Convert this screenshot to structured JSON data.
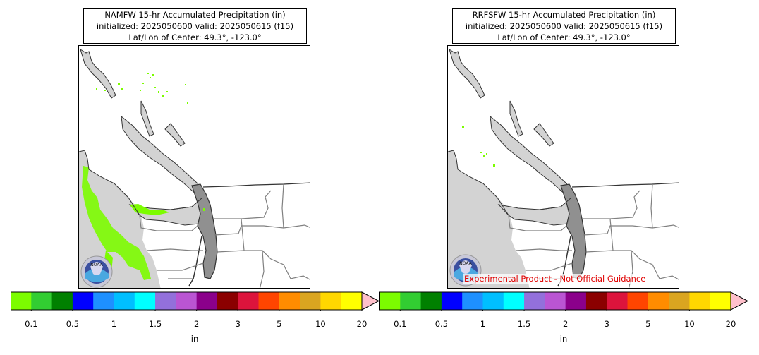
{
  "panels": [
    {
      "title_line1": "NAMFW 15-hr Accumulated Precipitation (in)",
      "title_line2": "initialized: 2025050600 valid: 2025050615 (f15)",
      "title_line3": "Lat/Lon of Center: 49.3°, -123.0°",
      "logo_text": "NOAA"
    },
    {
      "title_line1": "RRFSFW 15-hr Accumulated Precipitation (in)",
      "title_line2": "initialized: 2025050600 valid: 2025050615 (f15)",
      "title_line3": "Lat/Lon of Center: 49.3°, -123.0°",
      "logo_text": "NOAA",
      "disclaimer": "Experimental Product - Not Official Guidance"
    }
  ],
  "colorbar": {
    "unit": "in",
    "ticks": [
      "0.1",
      "0.5",
      "1",
      "1.5",
      "2",
      "3",
      "5",
      "10",
      "20"
    ],
    "colors": [
      "#7cfc00",
      "#32cd32",
      "#008000",
      "#0000ff",
      "#1e90ff",
      "#00bfff",
      "#00ffff",
      "#9370db",
      "#ba55d3",
      "#8b008b",
      "#8b0000",
      "#dc143c",
      "#ff4500",
      "#ff8c00",
      "#daa520",
      "#ffd700",
      "#ffff00"
    ],
    "extend_color": "#ffc0cb"
  },
  "map_colors": {
    "water": "#d3d3d3",
    "land": "#ffffff",
    "coast": "#333333",
    "border": "#808080",
    "precip_light": "#7cfc00"
  }
}
